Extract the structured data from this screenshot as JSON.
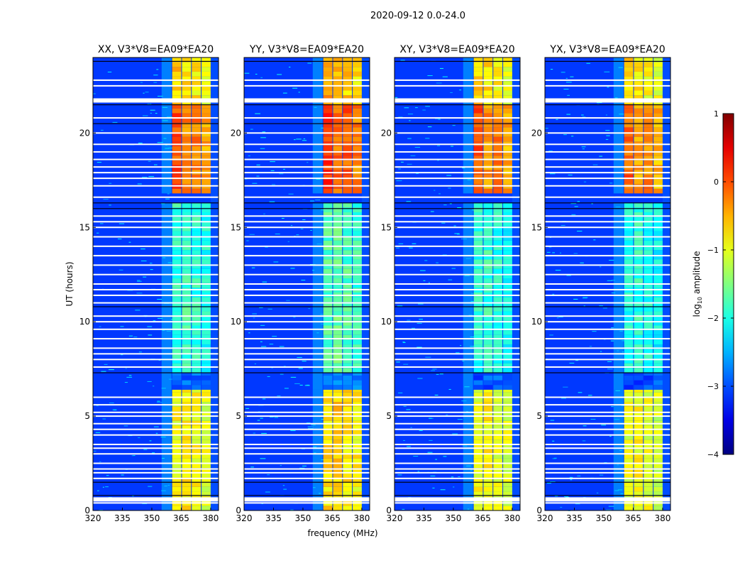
{
  "chart_data": {
    "type": "heatmap",
    "suptitle": "2020-09-12 0.0-24.0",
    "xlabel": "frequency (MHz)",
    "ylabel": "UT (hours)",
    "xlim": [
      320,
      384
    ],
    "ylim": [
      0,
      24
    ],
    "xticks": [
      "320",
      "335",
      "350",
      "365",
      "380"
    ],
    "xtick_values": [
      320,
      335,
      350,
      365,
      380
    ],
    "yticks": [
      "0",
      "5",
      "10",
      "15",
      "20"
    ],
    "ytick_values": [
      0,
      5,
      10,
      15,
      20
    ],
    "colorbar": {
      "label": "log10 amplitude",
      "label_main": "log",
      "label_sub": "10",
      "label_rest": " amplitude",
      "range": [
        -4,
        1
      ],
      "ticks": [
        "1",
        "0",
        "−1",
        "−2",
        "−3",
        "−4"
      ],
      "tick_values": [
        1,
        0,
        -1,
        -2,
        -3,
        -4
      ],
      "colormap": "jet"
    },
    "background_level": -3.1,
    "band": {
      "freq_range": [
        360,
        380
      ],
      "columns": [
        [
          360,
          365
        ],
        [
          365,
          370
        ],
        [
          370,
          375
        ],
        [
          375,
          380
        ]
      ]
    },
    "segments": [
      {
        "t": [
          0,
          6.4
        ],
        "levels": [
          -0.9,
          -0.8,
          -0.9,
          -1.0
        ]
      },
      {
        "t": [
          6.4,
          7.3
        ],
        "levels": [
          -2.9,
          -2.9,
          -2.9,
          -2.9
        ]
      },
      {
        "t": [
          7.3,
          16.3
        ],
        "levels": [
          -1.9,
          -1.8,
          -1.9,
          -2.0
        ]
      },
      {
        "t": [
          16.8,
          21.5
        ],
        "levels": [
          0.0,
          -0.3,
          -0.2,
          -0.4
        ]
      },
      {
        "t": [
          21.5,
          24
        ],
        "levels": [
          -0.6,
          -0.7,
          -0.8,
          -0.9
        ]
      }
    ],
    "flagged_hours": [
      0.4,
      0.6,
      1.7,
      2.0,
      2.2,
      2.5,
      3.0,
      3.3,
      3.5,
      4.0,
      4.3,
      4.6,
      5.0,
      5.2,
      5.6,
      6.0,
      7.6,
      8.0,
      8.3,
      8.6,
      9.1,
      9.6,
      10.0,
      10.3,
      11.0,
      11.4,
      11.7,
      12.0,
      12.5,
      13.0,
      13.5,
      14.0,
      14.5,
      15.0,
      15.3,
      15.6,
      16.6,
      17.2,
      17.6,
      17.9,
      18.2,
      18.6,
      19.0,
      19.4,
      20.0,
      20.8,
      21.8,
      22.5,
      22.8
    ],
    "dark_hours": [
      0.8,
      1.5,
      7.3,
      10.8,
      16.0,
      16.3,
      20.5,
      21.5,
      23.8
    ],
    "panels": [
      {
        "title": "XX, V3*V8=EA09*EA20",
        "gain": 0
      },
      {
        "title": "YY, V3*V8=EA09*EA20",
        "gain": 0.15
      },
      {
        "title": "XY, V3*V8=EA09*EA20",
        "gain": -0.05
      },
      {
        "title": "YX, V3*V8=EA09*EA20",
        "gain": -0.1
      }
    ]
  }
}
